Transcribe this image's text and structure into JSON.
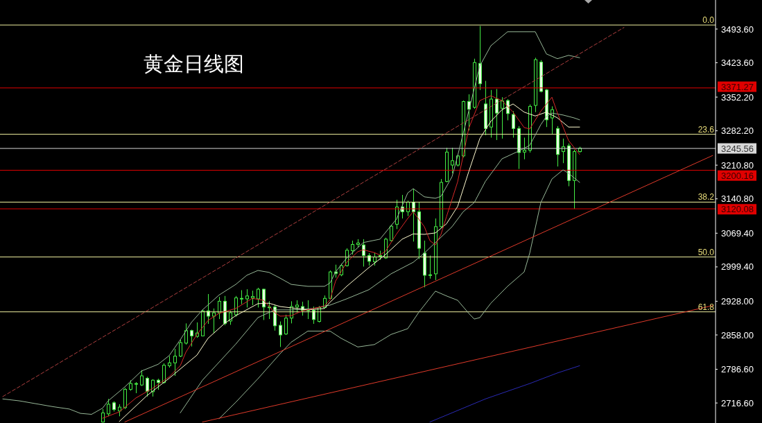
{
  "chart_data": {
    "type": "candlestick",
    "title": "黄金日线图",
    "color": "#44ee44",
    "tick_labels": "y",
    "categories": [
      null,
      null,
      null,
      null,
      null,
      null,
      null,
      null,
      null,
      null,
      null,
      null,
      null,
      null,
      null,
      null,
      null,
      null,
      null,
      null,
      null,
      null,
      null,
      null,
      null,
      null,
      null,
      null,
      null,
      null,
      null,
      null,
      null,
      null,
      null,
      null,
      null,
      null,
      null,
      null,
      null,
      null,
      null,
      null,
      null,
      null,
      null,
      null,
      null,
      null,
      null,
      null,
      null,
      null,
      null,
      null,
      null,
      null,
      null,
      null,
      null,
      null,
      null,
      null,
      null,
      null,
      null,
      null,
      null,
      null,
      null,
      null,
      null,
      null,
      null,
      null,
      null,
      null,
      null,
      null,
      null,
      null,
      null,
      null,
      null,
      null,
      null,
      null,
      null,
      null,
      null,
      null,
      null,
      null,
      null,
      null,
      null,
      null,
      null,
      null,
      null,
      null,
      null,
      null,
      null,
      null,
      null,
      null,
      null,
      null,
      null,
      null,
      null,
      null,
      null,
      null,
      null,
      null,
      null,
      null,
      null,
      null,
      null,
      null,
      null,
      null,
      null,
      null,
      null
    ],
    "ohlc": [
      null,
      null,
      null,
      null,
      null,
      null,
      null,
      null,
      null,
      null,
      null,
      null,
      null,
      null,
      null,
      null,
      null,
      null,
      [
        2677,
        2704,
        2676,
        2696
      ],
      [
        2694,
        2725,
        2689,
        2714
      ],
      [
        2717,
        2720,
        2699,
        2703
      ],
      [
        2700,
        2714,
        2689,
        2708
      ],
      [
        2707,
        2748,
        2704,
        2745
      ],
      [
        2745,
        2764,
        2742,
        2757
      ],
      [
        2757,
        2760,
        2737,
        2756
      ],
      [
        2754,
        2785,
        2752,
        2773
      ],
      [
        2768,
        2771,
        2730,
        2741
      ],
      [
        2740,
        2766,
        2730,
        2764
      ],
      [
        2764,
        2767,
        2744,
        2759
      ],
      [
        2759,
        2799,
        2757,
        2795
      ],
      [
        2794,
        2814,
        2790,
        2800
      ],
      [
        2800,
        2829,
        2773,
        2814
      ],
      [
        2814,
        2848,
        2812,
        2842
      ],
      [
        2841,
        2882,
        2838,
        2867
      ],
      [
        2867,
        2869,
        2834,
        2856
      ],
      [
        2855,
        2884,
        2852,
        2862
      ],
      [
        2856,
        2911,
        2855,
        2908
      ],
      [
        2908,
        2943,
        2881,
        2897
      ],
      [
        2897,
        2913,
        2862,
        2904
      ],
      [
        2904,
        2937,
        2891,
        2928
      ],
      [
        2928,
        2939,
        2878,
        2882
      ],
      [
        2887,
        2908,
        2879,
        2904
      ],
      [
        2900,
        2939,
        2896,
        2935
      ],
      [
        2933,
        2951,
        2922,
        2934
      ],
      [
        2933,
        2953,
        2915,
        2939
      ],
      [
        2935,
        2950,
        2920,
        2938
      ],
      [
        2933,
        2956,
        2915,
        2953
      ],
      [
        2953,
        2954,
        2889,
        2916
      ],
      [
        2916,
        2928,
        2891,
        2915
      ],
      [
        2916,
        2920,
        2867,
        2877
      ],
      [
        2878,
        2886,
        2833,
        2858
      ],
      [
        2860,
        2900,
        2858,
        2893
      ],
      [
        2893,
        2928,
        2882,
        2917
      ],
      [
        2916,
        2930,
        2905,
        2920
      ],
      [
        2917,
        2927,
        2898,
        2909
      ],
      [
        2910,
        2930,
        2891,
        2910
      ],
      [
        2909,
        2917,
        2881,
        2890
      ],
      [
        2886,
        2918,
        2884,
        2915
      ],
      [
        2915,
        2940,
        2913,
        2934
      ],
      [
        2934,
        2992,
        2933,
        2989
      ],
      [
        2989,
        3004,
        2977,
        2986
      ],
      [
        2983,
        3006,
        2980,
        3002
      ],
      [
        3002,
        3038,
        3000,
        3034
      ],
      [
        3033,
        3054,
        3025,
        3046
      ],
      [
        3046,
        3057,
        3040,
        3049
      ],
      [
        3045,
        3057,
        3000,
        3023
      ],
      [
        3023,
        3028,
        3002,
        3011
      ],
      [
        3010,
        3028,
        3002,
        3020
      ],
      [
        3022,
        3033,
        3014,
        3023
      ],
      [
        3018,
        3060,
        3016,
        3057
      ],
      [
        3054,
        3087,
        3052,
        3084
      ],
      [
        3088,
        3139,
        3078,
        3124
      ],
      [
        3124,
        3149,
        3100,
        3114
      ],
      [
        3114,
        3137,
        3105,
        3134
      ],
      [
        3134,
        3162,
        3052,
        3114
      ],
      [
        3114,
        3134,
        3016,
        3038
      ],
      [
        3028,
        3054,
        2957,
        2982
      ],
      [
        2982,
        3023,
        2975,
        2983
      ],
      [
        2985,
        3100,
        2972,
        3083
      ],
      [
        3083,
        3182,
        3081,
        3175
      ],
      [
        3177,
        3247,
        3175,
        3238
      ],
      [
        3211,
        3247,
        3194,
        3220
      ],
      [
        3211,
        3233,
        3208,
        3230
      ],
      [
        3230,
        3345,
        3227,
        3343
      ],
      [
        3343,
        3358,
        3283,
        3327
      ],
      [
        3331,
        3432,
        3328,
        3424
      ],
      [
        3422,
        3500,
        3367,
        3380
      ],
      [
        3338,
        3386,
        3273,
        3287
      ],
      [
        3290,
        3367,
        3268,
        3348
      ],
      [
        3348,
        3369,
        3263,
        3319
      ],
      [
        3329,
        3352,
        3266,
        3344
      ],
      [
        3345,
        3348,
        3304,
        3318
      ],
      [
        3316,
        3323,
        3268,
        3287
      ],
      [
        3287,
        3292,
        3203,
        3237
      ],
      [
        3238,
        3268,
        3223,
        3242
      ],
      [
        3242,
        3337,
        3237,
        3333
      ],
      [
        3335,
        3434,
        3321,
        3430
      ],
      [
        3425,
        3429,
        3362,
        3364
      ],
      [
        3367,
        3369,
        3290,
        3305
      ],
      [
        3309,
        3333,
        3275,
        3326
      ],
      [
        3287,
        3292,
        3208,
        3233
      ],
      [
        3239,
        3266,
        3215,
        3249
      ],
      [
        3251,
        3256,
        3167,
        3179
      ],
      [
        3179,
        3243,
        3120,
        3239
      ],
      [
        3239,
        3249,
        3237,
        3246
      ],
      null,
      null,
      null,
      null,
      null,
      null,
      null,
      null,
      null,
      null,
      null,
      null,
      null,
      null,
      null,
      null,
      null,
      null,
      null,
      null,
      null,
      null,
      null,
      null
    ],
    "series": [
      {
        "type": "line",
        "color": "#98b898",
        "values": [
          2725,
          null,
          null,
          2721,
          null,
          null,
          2715,
          null,
          null,
          2709,
          null,
          null,
          2704,
          null,
          2695,
          null,
          2693,
          null,
          2706,
          2721,
          null,
          null,
          2750,
          null,
          null,
          2783,
          null,
          null,
          2797,
          null,
          2815,
          null,
          2848,
          null,
          2884,
          null,
          2910,
          null,
          null,
          2941,
          null,
          null,
          2963,
          null,
          2982,
          null,
          2992,
          null,
          2988,
          null,
          2976,
          null,
          2963,
          null,
          null,
          2959,
          null,
          null,
          2959,
          2966,
          2989,
          null,
          3018,
          null,
          null,
          3050,
          null,
          null,
          3057,
          null,
          null,
          3099,
          null,
          3153,
          3162,
          null,
          3145,
          null,
          3142,
          3146,
          null,
          3187,
          3230,
          null,
          3323,
          null,
          3417,
          null,
          3459,
          null,
          null,
          3488,
          null,
          null,
          null,
          null,
          3488,
          null,
          3442,
          null,
          3432,
          null,
          3439,
          null,
          3434,
          null,
          null,
          null,
          null,
          null,
          null,
          null,
          null,
          null,
          null,
          null,
          null,
          null,
          null,
          null,
          null,
          null,
          null,
          null,
          null,
          null,
          null,
          null,
          null
        ]
      },
      {
        "type": "line",
        "color": "#98b898",
        "values": [
          null,
          null,
          null,
          null,
          null,
          null,
          null,
          null,
          null,
          null,
          null,
          null,
          null,
          null,
          null,
          null,
          null,
          null,
          null,
          null,
          null,
          null,
          null,
          null,
          null,
          null,
          null,
          null,
          null,
          null,
          null,
          null,
          2696,
          null,
          null,
          null,
          2764,
          null,
          null,
          null,
          null,
          null,
          2839,
          null,
          null,
          null,
          2894,
          null,
          null,
          2910,
          null,
          null,
          2910,
          null,
          null,
          null,
          2913,
          null,
          null,
          2920,
          null,
          null,
          2933,
          null,
          null,
          null,
          2952,
          null,
          null,
          null,
          2985,
          null,
          null,
          null,
          3009,
          null,
          3028,
          null,
          3050,
          null,
          null,
          3083,
          null,
          3114,
          null,
          3133,
          null,
          3177,
          null,
          null,
          3224,
          null,
          null,
          3240,
          null,
          3252,
          null,
          3295,
          3312,
          3319,
          null,
          3315,
          null,
          3309,
          3305,
          null,
          null,
          null,
          null,
          null,
          null,
          null,
          null,
          null,
          null,
          null,
          null,
          null,
          null,
          null,
          null,
          null,
          null,
          null,
          null,
          null,
          null,
          null,
          null
        ]
      },
      {
        "type": "line",
        "color": "#98b898",
        "values": [
          null,
          null,
          null,
          null,
          null,
          null,
          null,
          null,
          null,
          null,
          null,
          null,
          null,
          null,
          null,
          null,
          null,
          null,
          null,
          null,
          null,
          null,
          null,
          null,
          null,
          null,
          null,
          null,
          null,
          null,
          null,
          null,
          null,
          null,
          null,
          null,
          null,
          null,
          null,
          2684,
          null,
          null,
          2718,
          null,
          null,
          null,
          2767,
          null,
          null,
          null,
          2819,
          null,
          2843,
          null,
          null,
          2866,
          null,
          null,
          null,
          2866,
          null,
          2851,
          null,
          null,
          2833,
          null,
          null,
          2838,
          null,
          null,
          2859,
          null,
          null,
          2871,
          null,
          2905,
          null,
          null,
          2949,
          null,
          2939,
          null,
          2930,
          null,
          2903,
          2891,
          2894,
          null,
          2924,
          null,
          null,
          2959,
          null,
          null,
          2989,
          3028,
          null,
          3133,
          null,
          3182,
          null,
          3201,
          3194,
          null,
          3175,
          null,
          null,
          null,
          null,
          null,
          null,
          null,
          null,
          null,
          null,
          null,
          null,
          null,
          null,
          null,
          null,
          null,
          null,
          null,
          null,
          null,
          null,
          null,
          null
        ]
      },
      {
        "type": "line",
        "color": "#2a2ab4",
        "values": [
          null,
          null,
          null,
          null,
          null,
          null,
          null,
          null,
          null,
          null,
          null,
          null,
          null,
          null,
          null,
          null,
          null,
          null,
          null,
          null,
          null,
          null,
          null,
          null,
          null,
          null,
          null,
          null,
          null,
          null,
          null,
          null,
          null,
          null,
          null,
          null,
          null,
          null,
          null,
          null,
          null,
          null,
          null,
          null,
          null,
          null,
          null,
          null,
          null,
          null,
          null,
          null,
          null,
          null,
          null,
          null,
          null,
          null,
          null,
          null,
          null,
          null,
          null,
          null,
          null,
          null,
          null,
          null,
          null,
          null,
          null,
          null,
          null,
          null,
          null,
          null,
          null,
          2677,
          null,
          null,
          null,
          null,
          null,
          null,
          null,
          null,
          null,
          2725,
          null,
          null,
          null,
          null,
          null,
          null,
          null,
          2757,
          null,
          null,
          null,
          null,
          2779,
          null,
          null,
          null,
          2794,
          null,
          null,
          null,
          null,
          null,
          null,
          null,
          null,
          null,
          null,
          null,
          null,
          null,
          null,
          null,
          null,
          null,
          null,
          null,
          null,
          null,
          null,
          null,
          null
        ]
      },
      {
        "type": "line",
        "color": "#fffbd0",
        "values": [
          null,
          null,
          null,
          null,
          null,
          null,
          null,
          null,
          null,
          null,
          null,
          null,
          null,
          null,
          null,
          null,
          null,
          null,
          null,
          null,
          null,
          2678,
          null,
          null,
          null,
          null,
          2732,
          null,
          null,
          null,
          2768,
          null,
          null,
          null,
          null,
          2816,
          null,
          2851,
          null,
          null,
          2882,
          null,
          2898,
          null,
          null,
          null,
          2923,
          null,
          2924,
          null,
          2917,
          null,
          null,
          2913,
          null,
          2910,
          null,
          null,
          2913,
          2926,
          null,
          null,
          2959,
          null,
          null,
          null,
          2998,
          null,
          null,
          3025,
          null,
          null,
          3057,
          null,
          3068,
          null,
          3067,
          null,
          3070,
          null,
          3089,
          null,
          3125,
          null,
          3197,
          null,
          3266,
          null,
          3302,
          null,
          3326,
          null,
          3338,
          null,
          3321,
          null,
          3313,
          null,
          3321,
          null,
          3309,
          null,
          3290,
          null,
          3290,
          null,
          null,
          null,
          null,
          null,
          null,
          null,
          null,
          null,
          null,
          null,
          null,
          null,
          null,
          null,
          null,
          null,
          null,
          null,
          null,
          null,
          null,
          null,
          null
        ]
      },
      {
        "type": "line",
        "color": "#d82828",
        "values": [
          null,
          null,
          null,
          null,
          null,
          null,
          null,
          null,
          null,
          null,
          null,
          null,
          null,
          null,
          null,
          null,
          null,
          null,
          2685,
          null,
          null,
          2698,
          null,
          null,
          2727,
          null,
          null,
          2747,
          null,
          null,
          2771,
          null,
          2794,
          2822,
          null,
          2859,
          null,
          2888,
          null,
          2903,
          null,
          null,
          2913,
          null,
          null,
          2934,
          null,
          2930,
          null,
          2905,
          2897,
          null,
          2898,
          null,
          2908,
          null,
          2913,
          null,
          2918,
          2931,
          2970,
          null,
          3009,
          null,
          3031,
          3035,
          null,
          3029,
          3024,
          3032,
          null,
          3068,
          null,
          3100,
          3114,
          null,
          3083,
          3054,
          3045,
          3067,
          3104,
          null,
          3176,
          3230,
          3287,
          null,
          3345,
          null,
          3355,
          null,
          3345,
          null,
          3321,
          null,
          3289,
          3286,
          null,
          3323,
          null,
          3352,
          3319,
          null,
          3262,
          null,
          3233,
          null,
          null,
          null,
          null,
          null,
          null,
          null,
          null,
          null,
          null,
          null,
          null,
          null,
          null,
          null,
          null,
          null,
          null,
          null,
          null,
          null,
          null,
          null,
          null
        ]
      },
      {
        "type": "line",
        "color": "#e03a2a",
        "values": [
          null,
          null,
          null,
          null,
          null,
          null,
          null,
          null,
          null,
          null,
          null,
          null,
          null,
          null,
          null,
          null,
          null,
          null,
          null,
          null,
          null,
          null,
          2677,
          null,
          null,
          null,
          null,
          null,
          null,
          null,
          null,
          null,
          null,
          null,
          null,
          null,
          null,
          null,
          null,
          null,
          null,
          null,
          null,
          null,
          null,
          null,
          null,
          null,
          null,
          null,
          null,
          null,
          null,
          null,
          null,
          null,
          null,
          null,
          null,
          null,
          null,
          null,
          null,
          null,
          null,
          null,
          null,
          null,
          null,
          null,
          null,
          null,
          null,
          null,
          null,
          null,
          null,
          null,
          null,
          null,
          null,
          null,
          null,
          null,
          null,
          null,
          null,
          null,
          null,
          null,
          null,
          null,
          null,
          null,
          null,
          null,
          null,
          null,
          null,
          null,
          null,
          null,
          null,
          null,
          null,
          null,
          null,
          null,
          null,
          null,
          null,
          null,
          null,
          null,
          null,
          null,
          null,
          null,
          null,
          null,
          null,
          null,
          null,
          null,
          null,
          null,
          null,
          null,
          3231
        ]
      },
      {
        "type": "line",
        "color": "#e03a2a",
        "values": [
          null,
          null,
          null,
          null,
          null,
          null,
          null,
          null,
          null,
          null,
          null,
          null,
          null,
          null,
          null,
          null,
          null,
          null,
          null,
          null,
          null,
          null,
          null,
          null,
          null,
          null,
          null,
          null,
          null,
          null,
          null,
          null,
          null,
          null,
          null,
          null,
          2677,
          null,
          null,
          null,
          null,
          null,
          null,
          null,
          null,
          null,
          null,
          null,
          null,
          null,
          null,
          null,
          null,
          null,
          null,
          null,
          null,
          null,
          null,
          null,
          null,
          null,
          null,
          null,
          null,
          null,
          null,
          null,
          null,
          null,
          null,
          null,
          null,
          null,
          null,
          null,
          null,
          null,
          null,
          null,
          null,
          null,
          null,
          null,
          null,
          null,
          null,
          null,
          null,
          null,
          null,
          null,
          null,
          null,
          null,
          null,
          null,
          null,
          null,
          null,
          null,
          null,
          null,
          null,
          null,
          null,
          null,
          null,
          null,
          null,
          null,
          null,
          null,
          null,
          null,
          null,
          null,
          null,
          null,
          null,
          null,
          null,
          null,
          null,
          null,
          null,
          null,
          null,
          2919
        ]
      },
      {
        "type": "line",
        "color": "#b04040",
        "line_style": "dashed",
        "values": [
          2730,
          null,
          null,
          null,
          null,
          null,
          null,
          null,
          null,
          null,
          null,
          null,
          null,
          null,
          null,
          null,
          null,
          null,
          null,
          null,
          null,
          null,
          null,
          null,
          null,
          null,
          null,
          null,
          null,
          null,
          null,
          null,
          null,
          null,
          null,
          null,
          null,
          null,
          null,
          null,
          null,
          null,
          null,
          null,
          null,
          null,
          null,
          null,
          null,
          null,
          null,
          null,
          null,
          null,
          null,
          null,
          null,
          null,
          null,
          null,
          null,
          null,
          null,
          null,
          null,
          null,
          null,
          null,
          null,
          null,
          null,
          null,
          null,
          null,
          null,
          null,
          null,
          null,
          null,
          null,
          null,
          null,
          null,
          null,
          null,
          null,
          null,
          null,
          null,
          null,
          null,
          null,
          null,
          null,
          null,
          null,
          null,
          null,
          null,
          null,
          null,
          null,
          null,
          null,
          null,
          null,
          null,
          null,
          null,
          null,
          null,
          null,
          3497,
          null,
          null,
          null,
          null,
          null,
          null,
          null,
          null,
          null,
          null,
          null,
          null,
          null,
          null,
          null,
          null
        ]
      }
    ],
    "ylim": [
      2675,
      3554
    ],
    "yticks": [
      {
        "value": 2716.6,
        "label": "2716.60"
      },
      {
        "value": 2786.6,
        "label": "2786.60"
      },
      {
        "value": 2858,
        "label": "2858.00"
      },
      {
        "value": 2928,
        "label": "2928.00"
      },
      {
        "value": 2999.4,
        "label": "2999.40"
      },
      {
        "value": 3069.4,
        "label": "3069.40"
      },
      {
        "value": 3140.8,
        "label": "3140.80"
      },
      {
        "value": 3210.8,
        "label": "3210.80"
      },
      {
        "value": 3282.2,
        "label": "3282.20"
      },
      {
        "value": 3352.2,
        "label": "3352.20"
      },
      {
        "value": 3423.6,
        "label": "3423.60"
      },
      {
        "value": 3493.6,
        "label": "3493.60"
      }
    ],
    "ref_lines": [
      {
        "axis": "y",
        "value": 3502,
        "color": "#f2f2a0"
      },
      {
        "axis": "y",
        "value": 3275,
        "color": "#f2f2a0"
      },
      {
        "axis": "y",
        "value": 3134,
        "color": "#f2f2a0"
      },
      {
        "axis": "y",
        "value": 3020,
        "color": "#f2f2a0"
      },
      {
        "axis": "y",
        "value": 2906,
        "color": "#f2f2a0"
      },
      {
        "axis": "y",
        "value": 3371.27,
        "label": "3371.27",
        "color": "#e00000"
      },
      {
        "axis": "y",
        "value": 3245.56,
        "label": "3245.56",
        "color": "#d8d8d8"
      },
      {
        "axis": "y",
        "value": 3200.16,
        "label": "3200.16",
        "color": "#e00000"
      },
      {
        "axis": "y",
        "value": 3120.08,
        "label": "3120.08",
        "color": "#e00000"
      }
    ],
    "annotations": [
      {
        "text": "0.0",
        "y": 3502
      },
      {
        "text": "23.6",
        "y": 3275
      },
      {
        "text": "38.2",
        "y": 3134
      },
      {
        "text": "50.0",
        "y": 3020
      },
      {
        "text": "61.8",
        "y": 2906
      }
    ]
  }
}
